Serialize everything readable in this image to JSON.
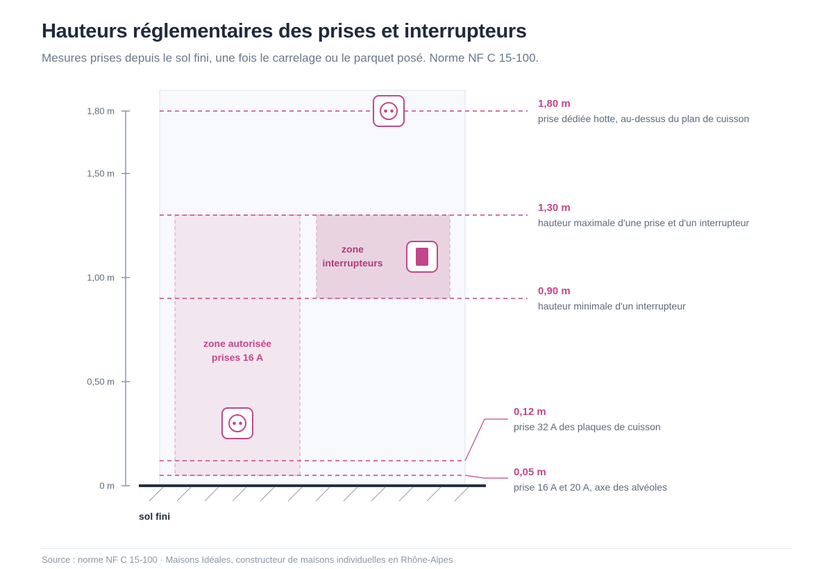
{
  "header": {
    "title": "Hauteurs réglementaires des prises et interrupteurs",
    "subtitle": "Mesures prises depuis le sol fini, une fois le carrelage ou le parquet posé. Norme NF C 15-100."
  },
  "axis": {
    "ticks": [
      {
        "value": 0,
        "label": "0 m"
      },
      {
        "value": 0.5,
        "label": "0,50 m"
      },
      {
        "value": 1.0,
        "label": "1,00 m"
      },
      {
        "value": 1.5,
        "label": "1,50 m"
      },
      {
        "value": 1.8,
        "label": "1,80 m"
      }
    ],
    "range": [
      0,
      1.8
    ]
  },
  "floor": {
    "label": "sol fini"
  },
  "zones": {
    "prises": {
      "label_line1": "zone autorisée",
      "label_line2": "prises 16 A",
      "from": 0.05,
      "to": 1.3
    },
    "interrupteurs": {
      "label_line1": "zone",
      "label_line2": "interrupteurs",
      "from": 0.9,
      "to": 1.3
    }
  },
  "levels": [
    {
      "value": 1.8,
      "height": "1,80 m",
      "description": "prise dédiée hotte, au-dessus du plan de cuisson"
    },
    {
      "value": 1.3,
      "height": "1,30 m",
      "description": "hauteur maximale d'une prise et d'un interrupteur"
    },
    {
      "value": 0.9,
      "height": "0,90 m",
      "description": "hauteur minimale d'un interrupteur"
    },
    {
      "value": 0.12,
      "height": "0,12 m",
      "description": "prise 32 A des plaques de cuisson"
    },
    {
      "value": 0.05,
      "height": "0,05 m",
      "description": "prise 16 A et 20 A, axe des alvéoles"
    }
  ],
  "icons": {
    "hood_outlet": "power-outlet-icon",
    "low_outlet": "power-outlet-icon",
    "switch": "light-switch-icon"
  },
  "colors": {
    "accent": "#c2478b",
    "accent_light": "#e6a9c8",
    "wall": "#f7f9fc",
    "wall_border": "#dde4ee",
    "zone_prises_fill": "#f2e6ef",
    "zone_switch_fill": "#ead3e1",
    "axis": "#8a97a6",
    "floor": "#26303f"
  },
  "footer": {
    "source": "Source : norme NF C 15-100 · Maisons Idéales, constructeur de maisons individuelles en Rhône-Alpes"
  }
}
